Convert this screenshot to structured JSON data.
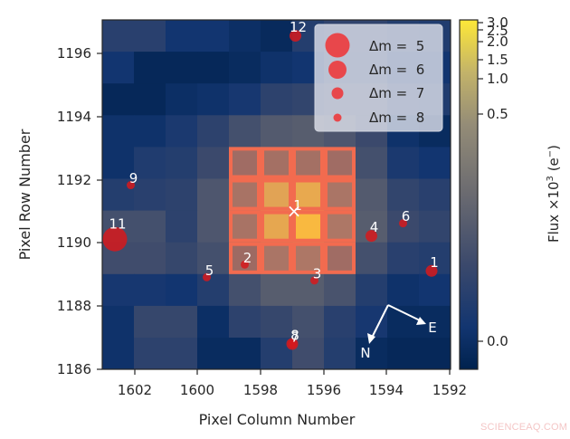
{
  "chart_data": {
    "type": "heatmap",
    "title": "",
    "xlabel": "Pixel Column Number",
    "ylabel": "Pixel Row Number",
    "x_ticks": [
      "1602",
      "1600",
      "1598",
      "1596",
      "1594",
      "1592"
    ],
    "y_ticks": [
      "1196",
      "1194",
      "1192",
      "1190",
      "1188",
      "1186"
    ],
    "xlim": [
      1602.5,
      1591.5
    ],
    "ylim": [
      1186,
      1197
    ],
    "grid_columns": 11,
    "grid_rows": 11,
    "intensity_grid_top_to_bottom": [
      [
        0.22,
        0.22,
        0.12,
        0.12,
        0.08,
        0.05,
        0.2,
        0.25,
        0.25,
        0.2,
        0.18
      ],
      [
        0.12,
        0.04,
        0.04,
        0.04,
        0.06,
        0.1,
        0.12,
        0.22,
        0.22,
        0.12,
        0.12
      ],
      [
        0.04,
        0.04,
        0.08,
        0.1,
        0.14,
        0.24,
        0.26,
        0.3,
        0.3,
        0.2,
        0.18
      ],
      [
        0.1,
        0.1,
        0.16,
        0.24,
        0.34,
        0.4,
        0.42,
        0.38,
        0.3,
        0.1,
        0.06
      ],
      [
        0.1,
        0.18,
        0.2,
        0.3,
        0.52,
        0.55,
        0.55,
        0.52,
        0.34,
        0.16,
        0.12
      ],
      [
        0.2,
        0.22,
        0.24,
        0.38,
        0.58,
        0.9,
        0.93,
        0.6,
        0.4,
        0.26,
        0.22
      ],
      [
        0.34,
        0.34,
        0.24,
        0.38,
        0.58,
        0.92,
        1.0,
        0.62,
        0.42,
        0.3,
        0.26
      ],
      [
        0.32,
        0.32,
        0.28,
        0.34,
        0.5,
        0.6,
        0.62,
        0.52,
        0.34,
        0.22,
        0.2
      ],
      [
        0.14,
        0.14,
        0.12,
        0.2,
        0.34,
        0.42,
        0.42,
        0.36,
        0.2,
        0.1,
        0.12
      ],
      [
        0.1,
        0.28,
        0.28,
        0.08,
        0.24,
        0.28,
        0.34,
        0.22,
        0.14,
        0.06,
        0.06
      ],
      [
        0.1,
        0.24,
        0.24,
        0.06,
        0.06,
        0.2,
        0.32,
        0.2,
        0.06,
        0.04,
        0.04
      ]
    ],
    "aperture_mask": {
      "col_start": 4,
      "col_end": 7,
      "row_start": 4,
      "row_end": 7,
      "color": "#f26b4f"
    },
    "target_marker": {
      "label": "1",
      "symbol": "×",
      "column": 1596.8,
      "row": 1190.9
    },
    "stars": [
      {
        "label": "2",
        "column": 1598.0,
        "row": 1189.3,
        "dm": 8
      },
      {
        "label": "3",
        "column": 1595.8,
        "row": 1188.8,
        "dm": 8
      },
      {
        "label": "4",
        "column": 1594.0,
        "row": 1190.2,
        "dm": 7
      },
      {
        "label": "5",
        "column": 1599.2,
        "row": 1188.9,
        "dm": 8
      },
      {
        "label": "6",
        "column": 1593.0,
        "row": 1190.6,
        "dm": 8
      },
      {
        "label": "7",
        "column": 1596.5,
        "row": 1186.8,
        "dm": 8
      },
      {
        "label": "8",
        "column": 1596.5,
        "row": 1186.8,
        "dm": 7
      },
      {
        "label": "9",
        "column": 1601.6,
        "row": 1191.8,
        "dm": 8
      },
      {
        "label": "1",
        "column": 1592.1,
        "row": 1189.1,
        "dm": 7
      },
      {
        "label": "11",
        "column": 1602.1,
        "row": 1190.1,
        "dm": 5
      },
      {
        "label": "12",
        "column": 1596.4,
        "row": 1196.5,
        "dm": 7
      }
    ],
    "legend": {
      "position": "upper right",
      "entries": [
        {
          "label": "Δm =  5",
          "dm": 5
        },
        {
          "label": "Δm =  6",
          "dm": 6
        },
        {
          "label": "Δm =  7",
          "dm": 7
        },
        {
          "label": "Δm =  8",
          "dm": 8
        }
      ]
    },
    "compass": {
      "north_label": "N",
      "east_label": "E"
    },
    "colorbar": {
      "label": "Flux ×10³ (e⁻)",
      "ticks": [
        "0.0",
        "0.5",
        "1.0",
        "1.5",
        "2.0",
        "2.5",
        "3.0"
      ],
      "scale": "sqrt-like stretch",
      "colormap": "cividis"
    },
    "colors": {
      "star_marker": "#d7191c",
      "legend_marker": "#e8474b",
      "aperture": "#f26b4f",
      "label_text": "#ffffff"
    }
  },
  "labels": {
    "xlabel": "Pixel Column Number",
    "ylabel": "Pixel Row Number",
    "colorbar_label_main": "Flux ×10",
    "colorbar_label_sup": "3",
    "colorbar_label_unit": " (e",
    "colorbar_label_unit_sup": "−",
    "colorbar_label_close": ")"
  },
  "watermark": "SCIENCEAQ.COM"
}
